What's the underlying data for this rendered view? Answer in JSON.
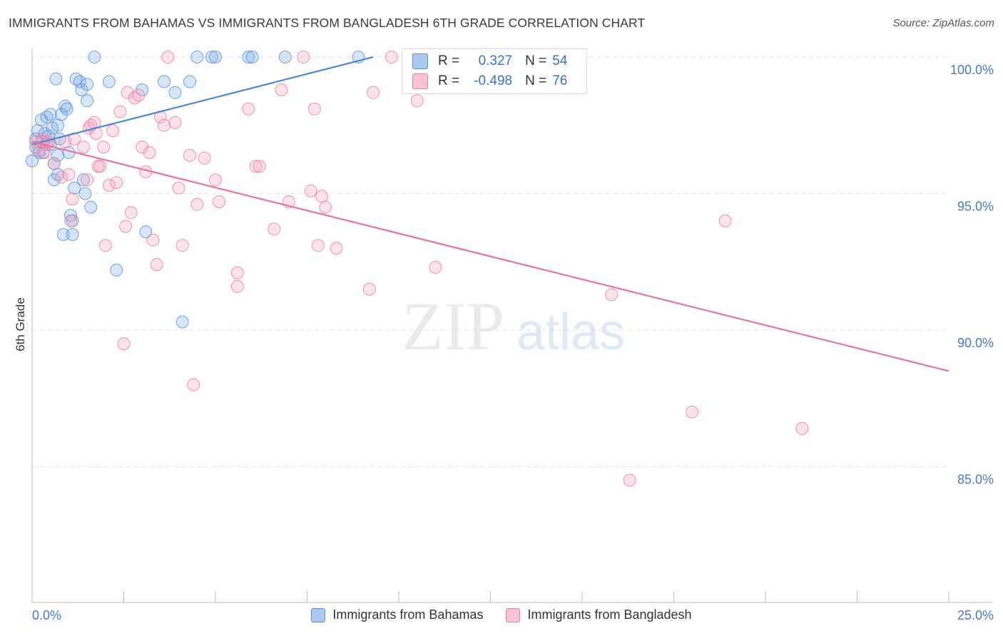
{
  "title": "IMMIGRANTS FROM BAHAMAS VS IMMIGRANTS FROM BANGLADESH 6TH GRADE CORRELATION CHART",
  "source": "Source: ZipAtlas.com",
  "watermark": {
    "zip": "ZIP",
    "atlas": "atlas"
  },
  "stats": [
    {
      "r_label": "R =",
      "r": "0.327",
      "n_label": "N =",
      "n": "54",
      "fill": "#aac8f0",
      "stroke": "#5b8fd8"
    },
    {
      "r_label": "R =",
      "r": "-0.498",
      "n_label": "N =",
      "n": "76",
      "fill": "#f8c4d4",
      "stroke": "#e87fa2"
    }
  ],
  "colors": {
    "blue": "#4a86d8",
    "blue_fill": "rgba(120,168,230,0.30)",
    "pink": "#e8739a",
    "pink_fill": "rgba(245,160,190,0.30)",
    "grid": "#e3e3e3",
    "tick_label": "#4a78c8"
  },
  "chart_data": {
    "type": "scatter",
    "title": "IMMIGRANTS FROM BAHAMAS VS IMMIGRANTS FROM BANGLADESH 6TH GRADE CORRELATION CHART",
    "xlabel": "",
    "ylabel": "6th Grade",
    "xlim": [
      0,
      25
    ],
    "ylim": [
      80,
      100.5
    ],
    "x_tick_labels": [
      "0.0%",
      "25.0%"
    ],
    "y_ticks": [
      85,
      90,
      95,
      100
    ],
    "y_tick_labels": [
      "85.0%",
      "90.0%",
      "95.0%",
      "100.0%"
    ],
    "grid": true,
    "legend_position": "bottom",
    "series": [
      {
        "name": "Immigrants from Bahamas",
        "color": "#4a86d8",
        "trend": {
          "x": [
            0,
            9.3
          ],
          "y": [
            96.8,
            100.0
          ]
        },
        "points": [
          [
            0.0,
            96.2
          ],
          [
            0.1,
            96.7
          ],
          [
            0.1,
            97.0
          ],
          [
            0.15,
            97.3
          ],
          [
            0.2,
            96.5
          ],
          [
            0.25,
            97.7
          ],
          [
            0.3,
            96.9
          ],
          [
            0.35,
            97.2
          ],
          [
            0.4,
            97.8
          ],
          [
            0.45,
            97.1
          ],
          [
            0.5,
            97.9
          ],
          [
            0.55,
            97.4
          ],
          [
            0.6,
            95.5
          ],
          [
            0.6,
            96.1
          ],
          [
            0.65,
            99.2
          ],
          [
            0.7,
            96.4
          ],
          [
            0.7,
            95.7
          ],
          [
            0.75,
            97.0
          ],
          [
            0.8,
            97.9
          ],
          [
            0.85,
            93.5
          ],
          [
            0.9,
            98.2
          ],
          [
            0.95,
            98.1
          ],
          [
            1.0,
            96.5
          ],
          [
            1.05,
            94.2
          ],
          [
            1.1,
            93.5
          ],
          [
            1.1,
            94.0
          ],
          [
            1.15,
            95.2
          ],
          [
            1.2,
            99.2
          ],
          [
            1.3,
            99.1
          ],
          [
            1.35,
            98.8
          ],
          [
            1.4,
            95.5
          ],
          [
            1.45,
            95.0
          ],
          [
            1.5,
            98.4
          ],
          [
            1.5,
            99.0
          ],
          [
            1.6,
            94.5
          ],
          [
            1.7,
            100.0
          ],
          [
            2.1,
            99.1
          ],
          [
            2.3,
            92.2
          ],
          [
            3.0,
            98.8
          ],
          [
            3.1,
            93.6
          ],
          [
            3.6,
            99.1
          ],
          [
            3.9,
            98.7
          ],
          [
            4.1,
            90.3
          ],
          [
            4.3,
            99.1
          ],
          [
            4.5,
            100.0
          ],
          [
            4.9,
            100.0
          ],
          [
            5.0,
            100.0
          ],
          [
            5.9,
            100.0
          ],
          [
            6.0,
            100.0
          ],
          [
            6.9,
            100.0
          ],
          [
            8.9,
            100.0
          ],
          [
            0.3,
            96.5
          ],
          [
            0.5,
            96.8
          ],
          [
            0.7,
            97.5
          ]
        ]
      },
      {
        "name": "Immigrants from Bangladesh",
        "color": "#e8739a",
        "trend": {
          "x": [
            0,
            25
          ],
          "y": [
            96.9,
            88.5
          ]
        },
        "points": [
          [
            0.1,
            96.9
          ],
          [
            0.2,
            96.6
          ],
          [
            0.25,
            96.9
          ],
          [
            0.3,
            97.0
          ],
          [
            0.35,
            96.5
          ],
          [
            0.4,
            96.8
          ],
          [
            0.45,
            96.9
          ],
          [
            0.6,
            96.1
          ],
          [
            0.8,
            95.6
          ],
          [
            0.9,
            96.9
          ],
          [
            1.0,
            95.7
          ],
          [
            1.05,
            94.0
          ],
          [
            1.1,
            94.8
          ],
          [
            1.15,
            97.0
          ],
          [
            1.4,
            96.7
          ],
          [
            1.5,
            95.5
          ],
          [
            1.55,
            97.4
          ],
          [
            1.6,
            97.5
          ],
          [
            1.7,
            97.6
          ],
          [
            1.75,
            97.2
          ],
          [
            1.8,
            96.0
          ],
          [
            1.85,
            96.0
          ],
          [
            1.95,
            96.7
          ],
          [
            2.0,
            93.1
          ],
          [
            2.1,
            95.3
          ],
          [
            2.2,
            97.3
          ],
          [
            2.3,
            95.4
          ],
          [
            2.4,
            98.0
          ],
          [
            2.5,
            89.5
          ],
          [
            2.55,
            93.8
          ],
          [
            2.6,
            98.7
          ],
          [
            2.7,
            94.3
          ],
          [
            2.8,
            98.5
          ],
          [
            2.9,
            98.6
          ],
          [
            3.0,
            96.7
          ],
          [
            3.1,
            95.8
          ],
          [
            3.2,
            96.5
          ],
          [
            3.3,
            93.3
          ],
          [
            3.4,
            92.4
          ],
          [
            3.5,
            97.8
          ],
          [
            3.6,
            97.5
          ],
          [
            3.7,
            100.0
          ],
          [
            3.9,
            97.6
          ],
          [
            4.0,
            95.2
          ],
          [
            4.1,
            93.1
          ],
          [
            4.3,
            96.4
          ],
          [
            4.4,
            88.0
          ],
          [
            4.5,
            94.6
          ],
          [
            4.7,
            96.3
          ],
          [
            5.0,
            95.5
          ],
          [
            5.1,
            94.7
          ],
          [
            5.6,
            91.6
          ],
          [
            5.6,
            92.1
          ],
          [
            5.9,
            98.1
          ],
          [
            6.1,
            96.0
          ],
          [
            6.2,
            96.0
          ],
          [
            6.6,
            93.7
          ],
          [
            6.8,
            98.8
          ],
          [
            7.0,
            94.7
          ],
          [
            7.4,
            100.0
          ],
          [
            7.6,
            95.1
          ],
          [
            7.7,
            98.1
          ],
          [
            7.8,
            93.1
          ],
          [
            7.9,
            94.9
          ],
          [
            8.0,
            94.5
          ],
          [
            8.3,
            93.0
          ],
          [
            9.2,
            91.5
          ],
          [
            9.3,
            98.7
          ],
          [
            9.8,
            100.0
          ],
          [
            10.5,
            98.4
          ],
          [
            11.0,
            92.3
          ],
          [
            15.8,
            91.3
          ],
          [
            16.3,
            84.5
          ],
          [
            18.0,
            87.0
          ],
          [
            18.9,
            94.0
          ],
          [
            21.0,
            86.4
          ]
        ]
      }
    ]
  }
}
